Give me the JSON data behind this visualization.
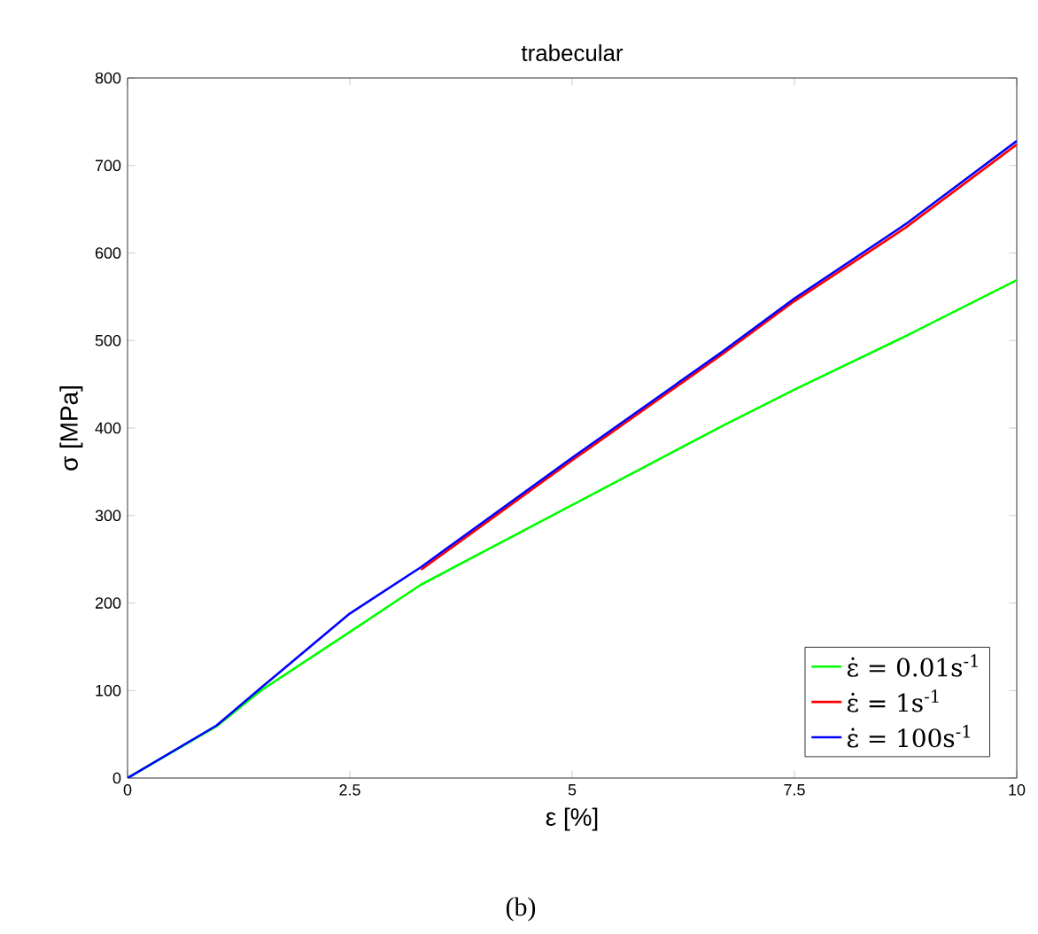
{
  "chart_data": {
    "type": "line",
    "title": "trabecular",
    "xlabel": "ε [%]",
    "ylabel": "σ [MPa]",
    "xlim": [
      0,
      10
    ],
    "ylim": [
      0,
      800
    ],
    "xticks": [
      0,
      2.5,
      5,
      7.5,
      10
    ],
    "yticks": [
      0,
      100,
      200,
      300,
      400,
      500,
      600,
      700,
      800
    ],
    "x": [
      0,
      1,
      1.5,
      2.5,
      3.3,
      5,
      6.7,
      7.5,
      8.75,
      10
    ],
    "series": [
      {
        "name": "ε̇ = 0.01s$^{-1}$",
        "color": "#00ff00",
        "values": [
          0,
          59,
          100,
          167,
          221,
          312,
          403,
          444,
          505,
          569
        ]
      },
      {
        "name": "ε̇ = 1s$^{-1}$",
        "color": "#ff0000",
        "values": [
          null,
          null,
          null,
          null,
          238,
          363,
          485,
          545,
          629,
          724
        ]
      },
      {
        "name": "ε̇ = 100s$^{-1}$",
        "color": "#0000ff",
        "values": [
          0,
          60,
          103,
          188,
          241,
          366,
          488,
          548,
          633,
          728
        ]
      }
    ],
    "legend": "bottom right",
    "grid": false,
    "marker": "none",
    "line_style": "solid",
    "annotations": [
      "(b)"
    ]
  }
}
